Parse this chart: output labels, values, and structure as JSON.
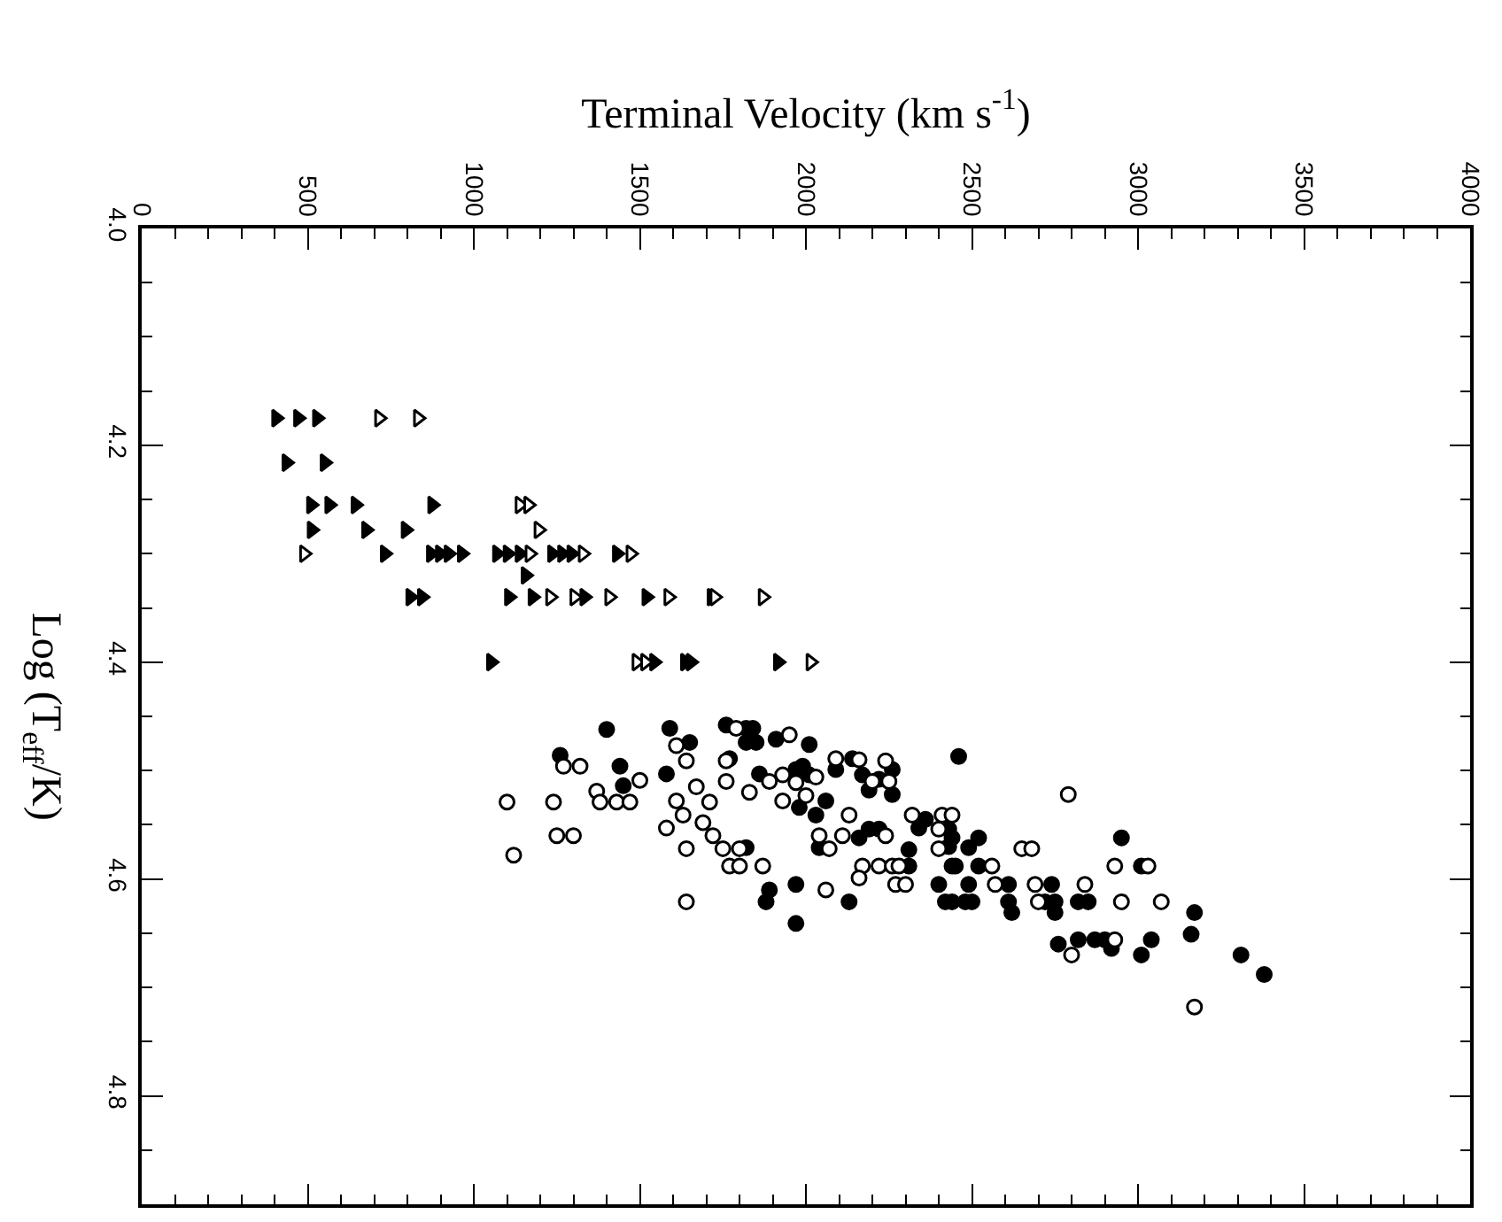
{
  "chart_data": {
    "type": "scatter",
    "xlabel": "Terminal Velocity (km s$^{-1}$)",
    "ylabel": "Log (T$_{eff}$/K)",
    "xlim": [
      0,
      4000
    ],
    "xticks": [
      0,
      500,
      1000,
      1500,
      2000,
      2500,
      3000,
      3500,
      4000
    ],
    "ylim": [
      4.9,
      4.0
    ],
    "yticks": [
      {
        "value": 4.0,
        "label": "4.0"
      },
      4.2,
      4.4,
      4.6,
      4.8
    ],
    "series": [
      {
        "marker": "triangle",
        "color": "#000000",
        "x": [
          405,
          471,
          528,
          436,
          551,
          510,
          565,
          644,
          875,
          512,
          676,
          795,
          732,
          871,
          898,
          924,
          964,
          1070,
          1102,
          1138,
          1236,
          1266,
          1294,
          1431,
          1156,
          809,
          844,
          1106,
          1177,
          1333,
          1520,
          1716,
          1052,
          1543,
          1636,
          1653,
          1916
        ],
        "values": [
          4.175,
          4.175,
          4.175,
          4.216,
          4.216,
          4.255,
          4.255,
          4.255,
          4.255,
          4.278,
          4.278,
          4.278,
          4.3,
          4.3,
          4.3,
          4.3,
          4.3,
          4.3,
          4.3,
          4.3,
          4.3,
          4.3,
          4.3,
          4.3,
          4.32,
          4.34,
          4.34,
          4.34,
          4.34,
          4.34,
          4.34,
          4.34,
          4.4,
          4.4,
          4.4,
          4.4,
          4.4
        ]
      },
      {
        "marker": "triangle",
        "color": "#ffffff",
        "x": [
          715,
          832,
          1138,
          1164,
          1195,
          489,
          1168,
          1328,
          1472,
          1230,
          1303,
          1408,
          1586,
          1725,
          1870,
          1490,
          1516,
          2014
        ],
        "values": [
          4.175,
          4.175,
          4.255,
          4.255,
          4.278,
          4.3,
          4.3,
          4.3,
          4.3,
          4.34,
          4.34,
          4.34,
          4.34,
          4.34,
          4.34,
          4.4,
          4.4,
          4.4
        ]
      },
      {
        "marker": "circle",
        "color": "#000000",
        "x": [
          1400,
          1590,
          1760,
          1820,
          1840,
          1820,
          1850,
          1650,
          1910,
          2010,
          1260,
          1440,
          1450,
          1580,
          1770,
          1860,
          1970,
          1990,
          2010,
          1980,
          2030,
          2060,
          2090,
          2140,
          2170,
          2190,
          2220,
          2190,
          2220,
          2160,
          2040,
          1820,
          1890,
          1880,
          1970,
          1970,
          2130,
          2460,
          2260,
          2260,
          2340,
          2360,
          2430,
          2430,
          2440,
          2490,
          2520,
          2310,
          2310,
          2440,
          2450,
          2520,
          2400,
          2490,
          2610,
          2740,
          2420,
          2440,
          2480,
          2500,
          2610,
          2620,
          2720,
          2750,
          2750,
          2820,
          2850,
          2760,
          2820,
          2870,
          2900,
          2920,
          2950,
          3010,
          3010,
          3040,
          3160,
          3170,
          3310,
          3380
        ],
        "values": [
          4.462,
          4.461,
          4.458,
          4.461,
          4.461,
          4.474,
          4.474,
          4.474,
          4.471,
          4.476,
          4.486,
          4.496,
          4.514,
          4.503,
          4.489,
          4.503,
          4.499,
          4.496,
          4.504,
          4.534,
          4.541,
          4.528,
          4.499,
          4.489,
          4.504,
          4.518,
          4.508,
          4.554,
          4.554,
          4.562,
          4.571,
          4.571,
          4.61,
          4.621,
          4.605,
          4.641,
          4.621,
          4.487,
          4.499,
          4.522,
          4.553,
          4.545,
          4.554,
          4.57,
          4.562,
          4.571,
          4.562,
          4.573,
          4.588,
          4.588,
          4.588,
          4.588,
          4.605,
          4.605,
          4.605,
          4.605,
          4.621,
          4.621,
          4.621,
          4.621,
          4.621,
          4.631,
          4.621,
          4.621,
          4.631,
          4.621,
          4.621,
          4.66,
          4.656,
          4.656,
          4.656,
          4.664,
          4.562,
          4.588,
          4.67,
          4.656,
          4.651,
          4.631,
          4.67,
          4.688
        ]
      },
      {
        "marker": "circle",
        "color": "#ffffff",
        "x": [
          1100,
          1120,
          1240,
          1250,
          1300,
          1270,
          1320,
          1370,
          1380,
          1430,
          1470,
          1500,
          1610,
          1640,
          1670,
          1610,
          1630,
          1580,
          1690,
          1710,
          1720,
          1750,
          1760,
          1760,
          1830,
          1890,
          1930,
          1950,
          1930,
          1970,
          2000,
          2030,
          1790,
          1640,
          1800,
          1770,
          1800,
          1870,
          1640,
          2040,
          2070,
          2110,
          2130,
          2090,
          2160,
          2240,
          2200,
          2170,
          2220,
          2160,
          2060,
          2250,
          2240,
          2260,
          2280,
          2270,
          2300,
          2320,
          2400,
          2410,
          2440,
          2400,
          2560,
          2570,
          2650,
          2680,
          2690,
          2700,
          2790,
          2840,
          2930,
          3030,
          2950,
          2930,
          2800,
          3070,
          3170
        ],
        "values": [
          4.529,
          4.578,
          4.529,
          4.56,
          4.56,
          4.496,
          4.496,
          4.519,
          4.529,
          4.529,
          4.529,
          4.509,
          4.477,
          4.491,
          4.515,
          4.528,
          4.541,
          4.553,
          4.548,
          4.529,
          4.56,
          4.572,
          4.51,
          4.491,
          4.52,
          4.51,
          4.528,
          4.467,
          4.504,
          4.511,
          4.523,
          4.506,
          4.461,
          4.572,
          4.572,
          4.588,
          4.588,
          4.588,
          4.621,
          4.56,
          4.572,
          4.56,
          4.541,
          4.489,
          4.49,
          4.491,
          4.51,
          4.588,
          4.588,
          4.599,
          4.61,
          4.51,
          4.56,
          4.588,
          4.588,
          4.605,
          4.605,
          4.541,
          4.554,
          4.541,
          4.541,
          4.572,
          4.588,
          4.605,
          4.572,
          4.572,
          4.605,
          4.621,
          4.522,
          4.605,
          4.588,
          4.588,
          4.621,
          4.656,
          4.67,
          4.621,
          4.718
        ]
      }
    ]
  }
}
